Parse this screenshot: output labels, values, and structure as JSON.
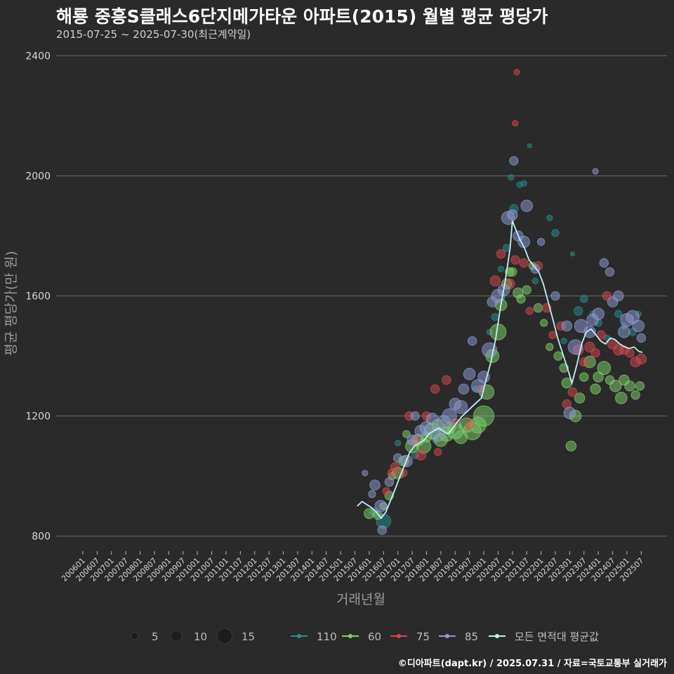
{
  "title": "해룡 중흥S클래스6단지메가타운 아파트(2015) 월별 평균 평당가",
  "subtitle": "2015-07-25 ~ 2025-07-30(최근계약일)",
  "footer": "©디아파트(dapt.kr) / 2025.07.31 / 자료=국토교통부 실거래가",
  "colors": {
    "background": "#2b2a2a",
    "grid": "#6a6a6a",
    "s110": "#2a8d8f",
    "s60": "#7fd36b",
    "s75": "#d9484f",
    "s85": "#8e9dd6",
    "avg": "#bff3f5"
  },
  "chart_data": {
    "type": "scatter",
    "xlabel": "거래년월",
    "ylabel": "평균 평당가(만 원)",
    "ylim": [
      750,
      2450
    ],
    "yticks": [
      800,
      1200,
      1600,
      2000,
      2400
    ],
    "ytick_labels": [
      "800",
      "1200",
      "1600",
      "2000",
      "2400"
    ],
    "x_range": [
      2006.0,
      2025.54
    ],
    "xtick_labels": [
      "200601",
      "200607",
      "200701",
      "200707",
      "200801",
      "200807",
      "200901",
      "200907",
      "201001",
      "201007",
      "201101",
      "201107",
      "201201",
      "201207",
      "201301",
      "201307",
      "201401",
      "201407",
      "201501",
      "201507",
      "201601",
      "201607",
      "201701",
      "201707",
      "201801",
      "201807",
      "201901",
      "201907",
      "202001",
      "202007",
      "202101",
      "202107",
      "202201",
      "202207",
      "202301",
      "202307",
      "202401",
      "202407",
      "202501",
      "202507"
    ],
    "size_legend": {
      "values": [
        5,
        10,
        15
      ],
      "labels": [
        "5",
        "10",
        "15"
      ]
    },
    "series_legend": [
      {
        "name": "110",
        "color": "#2a8d8f"
      },
      {
        "name": "60",
        "color": "#7fd36b"
      },
      {
        "name": "75",
        "color": "#d9484f"
      },
      {
        "name": "85",
        "color": "#8e9dd6"
      },
      {
        "name": "모든 면적대 평균값",
        "color": "#bff3f5"
      }
    ],
    "average_line": {
      "name": "모든 면적대 평균값",
      "points": [
        [
          2015.58,
          900
        ],
        [
          2015.75,
          915
        ],
        [
          2015.92,
          905
        ],
        [
          2016.08,
          895
        ],
        [
          2016.25,
          880
        ],
        [
          2016.42,
          860
        ],
        [
          2016.58,
          880
        ],
        [
          2016.75,
          920
        ],
        [
          2016.92,
          960
        ],
        [
          2017.08,
          1000
        ],
        [
          2017.25,
          1040
        ],
        [
          2017.42,
          1080
        ],
        [
          2017.58,
          1100
        ],
        [
          2017.75,
          1110
        ],
        [
          2017.92,
          1120
        ],
        [
          2018.08,
          1140
        ],
        [
          2018.25,
          1150
        ],
        [
          2018.42,
          1160
        ],
        [
          2018.58,
          1150
        ],
        [
          2018.75,
          1140
        ],
        [
          2018.92,
          1160
        ],
        [
          2019.08,
          1180
        ],
        [
          2019.25,
          1200
        ],
        [
          2019.42,
          1215
        ],
        [
          2019.58,
          1230
        ],
        [
          2019.75,
          1245
        ],
        [
          2019.92,
          1260
        ],
        [
          2020.08,
          1320
        ],
        [
          2020.25,
          1380
        ],
        [
          2020.42,
          1460
        ],
        [
          2020.58,
          1560
        ],
        [
          2020.75,
          1650
        ],
        [
          2020.92,
          1760
        ],
        [
          2021.0,
          1850
        ],
        [
          2021.08,
          1830
        ],
        [
          2021.25,
          1790
        ],
        [
          2021.42,
          1760
        ],
        [
          2021.58,
          1720
        ],
        [
          2021.75,
          1700
        ],
        [
          2021.92,
          1680
        ],
        [
          2022.08,
          1640
        ],
        [
          2022.25,
          1580
        ],
        [
          2022.42,
          1520
        ],
        [
          2022.58,
          1460
        ],
        [
          2022.75,
          1410
        ],
        [
          2022.92,
          1360
        ],
        [
          2023.08,
          1310
        ],
        [
          2023.25,
          1370
        ],
        [
          2023.42,
          1440
        ],
        [
          2023.58,
          1480
        ],
        [
          2023.75,
          1490
        ],
        [
          2023.92,
          1470
        ],
        [
          2024.08,
          1450
        ],
        [
          2024.25,
          1440
        ],
        [
          2024.42,
          1460
        ],
        [
          2024.58,
          1455
        ],
        [
          2024.75,
          1440
        ],
        [
          2024.92,
          1430
        ],
        [
          2025.08,
          1425
        ],
        [
          2025.25,
          1430
        ],
        [
          2025.42,
          1415
        ],
        [
          2025.54,
          1412
        ]
      ]
    },
    "series": [
      {
        "name": "110",
        "points": [
          [
            2016.2,
            880,
            4
          ],
          [
            2016.5,
            850,
            8
          ],
          [
            2017.0,
            1110,
            2
          ],
          [
            2017.6,
            1070,
            3
          ],
          [
            2018.3,
            1120,
            2
          ],
          [
            2019.1,
            1170,
            3
          ],
          [
            2019.7,
            1290,
            2
          ],
          [
            2020.2,
            1480,
            2
          ],
          [
            2020.4,
            1530,
            3
          ],
          [
            2020.6,
            1690,
            2
          ],
          [
            2020.8,
            1760,
            3
          ],
          [
            2020.95,
            1995,
            2
          ],
          [
            2021.05,
            1890,
            4
          ],
          [
            2021.25,
            1970,
            2
          ],
          [
            2021.4,
            1975,
            2
          ],
          [
            2021.6,
            2100,
            1
          ],
          [
            2021.8,
            1650,
            2
          ],
          [
            2022.3,
            1860,
            2
          ],
          [
            2022.5,
            1810,
            3
          ],
          [
            2022.8,
            1450,
            2
          ],
          [
            2023.1,
            1740,
            1
          ],
          [
            2023.3,
            1550,
            4
          ],
          [
            2023.5,
            1590,
            3
          ],
          [
            2023.8,
            1540,
            2
          ],
          [
            2024.0,
            1510,
            3
          ],
          [
            2024.3,
            1460,
            2
          ],
          [
            2024.7,
            1540,
            3
          ],
          [
            2024.9,
            1500,
            2
          ],
          [
            2025.2,
            1480,
            3
          ],
          [
            2025.4,
            1540,
            2
          ]
        ]
      },
      {
        "name": "60",
        "points": [
          [
            2016.0,
            875,
            5
          ],
          [
            2016.3,
            870,
            4
          ],
          [
            2016.5,
            900,
            3
          ],
          [
            2016.7,
            935,
            4
          ],
          [
            2016.8,
            1000,
            3
          ],
          [
            2017.0,
            1010,
            6
          ],
          [
            2017.2,
            1050,
            5
          ],
          [
            2017.3,
            1140,
            3
          ],
          [
            2017.5,
            1100,
            7
          ],
          [
            2017.7,
            1120,
            6
          ],
          [
            2017.9,
            1100,
            8
          ],
          [
            2018.0,
            1130,
            5
          ],
          [
            2018.2,
            1150,
            9
          ],
          [
            2018.4,
            1170,
            6
          ],
          [
            2018.5,
            1120,
            7
          ],
          [
            2018.7,
            1140,
            8
          ],
          [
            2018.8,
            1160,
            6
          ],
          [
            2019.0,
            1150,
            9
          ],
          [
            2019.2,
            1130,
            7
          ],
          [
            2019.4,
            1170,
            8
          ],
          [
            2019.6,
            1150,
            10
          ],
          [
            2019.8,
            1170,
            9
          ],
          [
            2020.0,
            1200,
            12
          ],
          [
            2020.1,
            1280,
            8
          ],
          [
            2020.3,
            1400,
            7
          ],
          [
            2020.5,
            1480,
            9
          ],
          [
            2020.6,
            1570,
            6
          ],
          [
            2020.8,
            1640,
            5
          ],
          [
            2020.9,
            1680,
            4
          ],
          [
            2021.0,
            1680,
            4
          ],
          [
            2021.2,
            1610,
            5
          ],
          [
            2021.3,
            1590,
            4
          ],
          [
            2021.5,
            1620,
            4
          ],
          [
            2021.7,
            1700,
            3
          ],
          [
            2021.9,
            1560,
            4
          ],
          [
            2022.1,
            1510,
            3
          ],
          [
            2022.3,
            1430,
            3
          ],
          [
            2022.6,
            1400,
            4
          ],
          [
            2022.8,
            1360,
            4
          ],
          [
            2022.9,
            1310,
            5
          ],
          [
            2023.05,
            1100,
            5
          ],
          [
            2023.2,
            1200,
            6
          ],
          [
            2023.35,
            1260,
            5
          ],
          [
            2023.5,
            1330,
            4
          ],
          [
            2023.7,
            1380,
            6
          ],
          [
            2023.9,
            1290,
            5
          ],
          [
            2024.0,
            1330,
            5
          ],
          [
            2024.2,
            1360,
            7
          ],
          [
            2024.4,
            1320,
            4
          ],
          [
            2024.6,
            1300,
            6
          ],
          [
            2024.8,
            1260,
            6
          ],
          [
            2024.9,
            1320,
            5
          ],
          [
            2025.1,
            1300,
            5
          ],
          [
            2025.3,
            1270,
            4
          ],
          [
            2025.45,
            1300,
            4
          ]
        ]
      },
      {
        "name": "75",
        "points": [
          [
            2016.6,
            950,
            3
          ],
          [
            2016.8,
            1010,
            4
          ],
          [
            2016.9,
            1030,
            4
          ],
          [
            2017.2,
            1010,
            3
          ],
          [
            2017.4,
            1200,
            4
          ],
          [
            2017.6,
            1120,
            4
          ],
          [
            2017.8,
            1070,
            5
          ],
          [
            2018.0,
            1200,
            4
          ],
          [
            2018.3,
            1290,
            4
          ],
          [
            2018.4,
            1080,
            3
          ],
          [
            2018.7,
            1320,
            4
          ],
          [
            2019.0,
            1180,
            3
          ],
          [
            2019.5,
            1170,
            4
          ],
          [
            2019.9,
            1290,
            3
          ],
          [
            2020.4,
            1650,
            5
          ],
          [
            2020.6,
            1740,
            4
          ],
          [
            2020.9,
            1640,
            5
          ],
          [
            2021.1,
            1720,
            4
          ],
          [
            2021.15,
            2345,
            2
          ],
          [
            2021.1,
            2175,
            2
          ],
          [
            2021.4,
            1710,
            4
          ],
          [
            2021.6,
            1550,
            3
          ],
          [
            2021.9,
            1700,
            4
          ],
          [
            2022.2,
            1560,
            4
          ],
          [
            2022.4,
            1470,
            3
          ],
          [
            2022.7,
            1500,
            4
          ],
          [
            2022.9,
            1240,
            4
          ],
          [
            2023.1,
            1280,
            4
          ],
          [
            2023.3,
            1420,
            5
          ],
          [
            2023.5,
            1380,
            4
          ],
          [
            2023.7,
            1430,
            5
          ],
          [
            2023.9,
            1410,
            4
          ],
          [
            2024.1,
            1470,
            4
          ],
          [
            2024.3,
            1600,
            4
          ],
          [
            2024.5,
            1440,
            5
          ],
          [
            2024.7,
            1420,
            5
          ],
          [
            2024.9,
            1420,
            4
          ],
          [
            2025.1,
            1410,
            4
          ],
          [
            2025.3,
            1380,
            5
          ],
          [
            2025.5,
            1390,
            5
          ]
        ]
      },
      {
        "name": "85",
        "points": [
          [
            2015.85,
            1010,
            2
          ],
          [
            2016.1,
            940,
            3
          ],
          [
            2016.2,
            970,
            5
          ],
          [
            2016.4,
            900,
            6
          ],
          [
            2016.45,
            820,
            4
          ],
          [
            2016.7,
            980,
            4
          ],
          [
            2017.0,
            1060,
            4
          ],
          [
            2017.3,
            1050,
            6
          ],
          [
            2017.5,
            1120,
            5
          ],
          [
            2017.6,
            1200,
            4
          ],
          [
            2017.8,
            1150,
            6
          ],
          [
            2018.0,
            1160,
            7
          ],
          [
            2018.2,
            1190,
            6
          ],
          [
            2018.4,
            1140,
            8
          ],
          [
            2018.6,
            1180,
            7
          ],
          [
            2018.8,
            1200,
            8
          ],
          [
            2019.0,
            1240,
            6
          ],
          [
            2019.2,
            1230,
            7
          ],
          [
            2019.3,
            1290,
            5
          ],
          [
            2019.5,
            1340,
            6
          ],
          [
            2019.6,
            1450,
            4
          ],
          [
            2019.8,
            1300,
            7
          ],
          [
            2020.0,
            1330,
            6
          ],
          [
            2020.2,
            1420,
            8
          ],
          [
            2020.3,
            1580,
            5
          ],
          [
            2020.5,
            1600,
            7
          ],
          [
            2020.7,
            1620,
            6
          ],
          [
            2020.85,
            1860,
            7
          ],
          [
            2021.0,
            1870,
            5
          ],
          [
            2021.05,
            2050,
            4
          ],
          [
            2021.2,
            1800,
            5
          ],
          [
            2021.4,
            1780,
            6
          ],
          [
            2021.5,
            1900,
            6
          ],
          [
            2021.8,
            1690,
            4
          ],
          [
            2022.0,
            1780,
            3
          ],
          [
            2022.5,
            1600,
            4
          ],
          [
            2022.9,
            1500,
            5
          ],
          [
            2023.0,
            1210,
            6
          ],
          [
            2023.2,
            1430,
            8
          ],
          [
            2023.4,
            1500,
            7
          ],
          [
            2023.7,
            1480,
            6
          ],
          [
            2023.8,
            1520,
            6
          ],
          [
            2023.9,
            2015,
            2
          ],
          [
            2024.0,
            1540,
            6
          ],
          [
            2024.2,
            1710,
            4
          ],
          [
            2024.4,
            1680,
            4
          ],
          [
            2024.5,
            1580,
            5
          ],
          [
            2024.7,
            1600,
            5
          ],
          [
            2024.9,
            1480,
            6
          ],
          [
            2025.0,
            1520,
            7
          ],
          [
            2025.2,
            1530,
            7
          ],
          [
            2025.4,
            1500,
            6
          ],
          [
            2025.5,
            1460,
            4
          ]
        ]
      }
    ]
  }
}
